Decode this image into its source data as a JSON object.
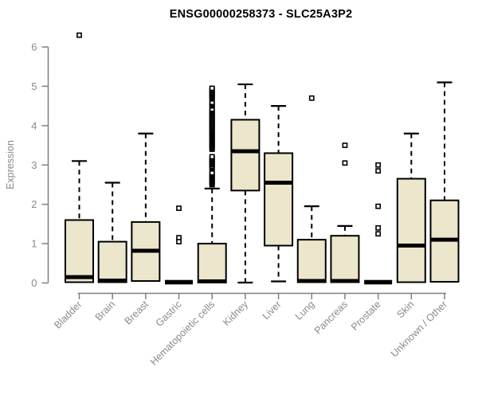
{
  "chart_data": {
    "type": "boxplot",
    "title": "ENSG00000258373 - SLC25A3P2",
    "ylabel": "Expression",
    "xlabel": "",
    "ylim": [
      0,
      6
    ],
    "yticks": [
      0,
      1,
      2,
      3,
      4,
      5,
      6
    ],
    "grid": false,
    "legend": false,
    "colors": {
      "box_fill": "#ebe6cc",
      "box_border": "#000000",
      "median": "#000000",
      "whisker": "#000000",
      "outlier_stroke": "#000000",
      "outlier_fill": "#ffffff",
      "axis_line": "#808080",
      "axis_text": "#8a8a8a",
      "title_text": "#000000",
      "background": "#ffffff"
    },
    "categories": [
      "Bladder",
      "Brain",
      "Breast",
      "Gastric",
      "Hematopoietic cells",
      "Kidney",
      "Liver",
      "Lung",
      "Pancreas",
      "Prostate",
      "Skin",
      "Unknown / Other"
    ],
    "boxes": [
      {
        "category": "Bladder",
        "whisker_low": 0,
        "q1": 0.02,
        "median": 0.15,
        "q3": 1.6,
        "whisker_high": 3.1,
        "outliers": [
          6.3
        ]
      },
      {
        "category": "Brain",
        "whisker_low": 0,
        "q1": 0.02,
        "median": 0.06,
        "q3": 1.05,
        "whisker_high": 2.55,
        "outliers": []
      },
      {
        "category": "Breast",
        "whisker_low": 0,
        "q1": 0.05,
        "median": 0.82,
        "q3": 1.55,
        "whisker_high": 3.8,
        "outliers": []
      },
      {
        "category": "Gastric",
        "whisker_low": 0.02,
        "q1": 0.02,
        "median": 0.02,
        "q3": 0.02,
        "whisker_high": 0.02,
        "outliers": [
          1.9,
          1.15,
          1.05
        ]
      },
      {
        "category": "Hematopoietic cells",
        "whisker_low": 0,
        "q1": 0.01,
        "median": 0.04,
        "q3": 1.0,
        "whisker_high": 2.4,
        "outliers": [
          2.5,
          2.53,
          2.56,
          2.59,
          2.62,
          2.65,
          2.68,
          2.71,
          2.74,
          2.77,
          2.8,
          2.9,
          2.93,
          2.96,
          3.0,
          3.03,
          3.06,
          3.09,
          3.12,
          3.15,
          3.18,
          3.21,
          3.4,
          3.43,
          3.46,
          3.49,
          3.52,
          3.55,
          3.58,
          3.61,
          3.64,
          3.67,
          3.7,
          3.73,
          3.76,
          3.79,
          3.82,
          3.85,
          3.88,
          3.91,
          3.94,
          3.97,
          4.0,
          4.03,
          4.06,
          4.09,
          4.12,
          4.15,
          4.18,
          4.21,
          4.24,
          4.27,
          4.3,
          4.33,
          4.36,
          4.39,
          4.42,
          4.5,
          4.53,
          4.56,
          4.59,
          4.68,
          4.71,
          4.74,
          4.77,
          4.8,
          4.83,
          4.86,
          4.89,
          4.92,
          4.95
        ]
      },
      {
        "category": "Kidney",
        "whisker_low": 0.01,
        "q1": 2.35,
        "median": 3.35,
        "q3": 4.15,
        "whisker_high": 5.05,
        "outliers": []
      },
      {
        "category": "Liver",
        "whisker_low": 0.04,
        "q1": 0.95,
        "median": 2.55,
        "q3": 3.3,
        "whisker_high": 4.5,
        "outliers": []
      },
      {
        "category": "Lung",
        "whisker_low": 0,
        "q1": 0.02,
        "median": 0.05,
        "q3": 1.1,
        "whisker_high": 1.95,
        "outliers": [
          4.7
        ]
      },
      {
        "category": "Pancreas",
        "whisker_low": 0,
        "q1": 0.02,
        "median": 0.05,
        "q3": 1.2,
        "whisker_high": 1.45,
        "outliers": [
          3.5,
          3.05
        ]
      },
      {
        "category": "Prostate",
        "whisker_low": 0.02,
        "q1": 0.02,
        "median": 0.02,
        "q3": 0.02,
        "whisker_high": 0.02,
        "outliers": [
          3.0,
          2.85,
          1.95,
          1.4,
          1.25
        ]
      },
      {
        "category": "Skin",
        "whisker_low": 0,
        "q1": 0.02,
        "median": 0.95,
        "q3": 2.65,
        "whisker_high": 3.8,
        "outliers": []
      },
      {
        "category": "Unknown / Other",
        "whisker_low": 0,
        "q1": 0.03,
        "median": 1.1,
        "q3": 2.1,
        "whisker_high": 5.1,
        "outliers": []
      }
    ]
  }
}
